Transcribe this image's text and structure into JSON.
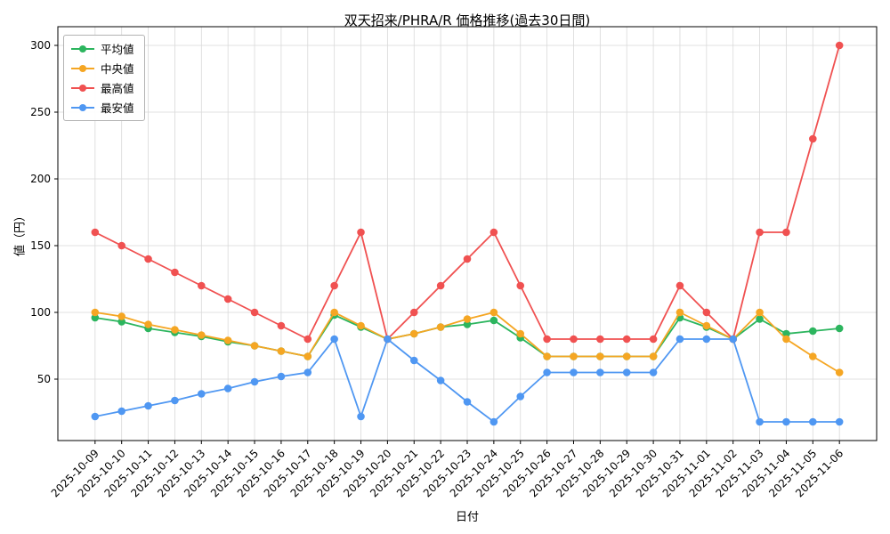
{
  "chart_data": {
    "type": "line",
    "title": "双天招来/PHRA/R 価格推移(過去30日間)",
    "xlabel": "日付",
    "ylabel": "値（円）",
    "grid": true,
    "legend_position": "upper-left",
    "ylim": [
      4,
      314
    ],
    "yticks": [
      50,
      100,
      150,
      200,
      250,
      300
    ],
    "categories": [
      "2025-10-09",
      "2025-10-10",
      "2025-10-11",
      "2025-10-12",
      "2025-10-13",
      "2025-10-14",
      "2025-10-15",
      "2025-10-16",
      "2025-10-17",
      "2025-10-18",
      "2025-10-19",
      "2025-10-20",
      "2025-10-21",
      "2025-10-22",
      "2025-10-23",
      "2025-10-24",
      "2025-10-25",
      "2025-10-26",
      "2025-10-27",
      "2025-10-28",
      "2025-10-29",
      "2025-10-30",
      "2025-10-31",
      "2025-11-01",
      "2025-11-02",
      "2025-11-03",
      "2025-11-04",
      "2025-11-05",
      "2025-11-06"
    ],
    "series": [
      {
        "name": "平均値",
        "color": "#2cb55e",
        "values": [
          96,
          93,
          88,
          85,
          82,
          78,
          75,
          71,
          67,
          98,
          89,
          80,
          84,
          89,
          91,
          94,
          81,
          67,
          67,
          67,
          67,
          67,
          96,
          89,
          80,
          95,
          84,
          86,
          88
        ]
      },
      {
        "name": "中央値",
        "color": "#f5a623",
        "values": [
          100,
          97,
          91,
          87,
          83,
          79,
          75,
          71,
          67,
          100,
          90,
          80,
          84,
          89,
          95,
          100,
          84,
          67,
          67,
          67,
          67,
          67,
          100,
          90,
          80,
          100,
          80,
          67,
          55
        ]
      },
      {
        "name": "最高値",
        "color": "#f05151",
        "values": [
          160,
          150,
          140,
          130,
          120,
          110,
          100,
          90,
          80,
          120,
          160,
          80,
          100,
          120,
          140,
          160,
          120,
          80,
          80,
          80,
          80,
          80,
          120,
          100,
          80,
          160,
          160,
          230,
          300
        ]
      },
      {
        "name": "最安値",
        "color": "#4f97f2",
        "values": [
          22,
          26,
          30,
          34,
          39,
          43,
          48,
          52,
          55,
          80,
          22,
          80,
          64,
          49,
          33,
          18,
          37,
          55,
          55,
          55,
          55,
          55,
          80,
          80,
          80,
          18,
          18,
          18,
          18
        ]
      }
    ],
    "colors": {
      "grid": "#d9d9d9",
      "axis": "#000000",
      "background": "#ffffff"
    }
  }
}
